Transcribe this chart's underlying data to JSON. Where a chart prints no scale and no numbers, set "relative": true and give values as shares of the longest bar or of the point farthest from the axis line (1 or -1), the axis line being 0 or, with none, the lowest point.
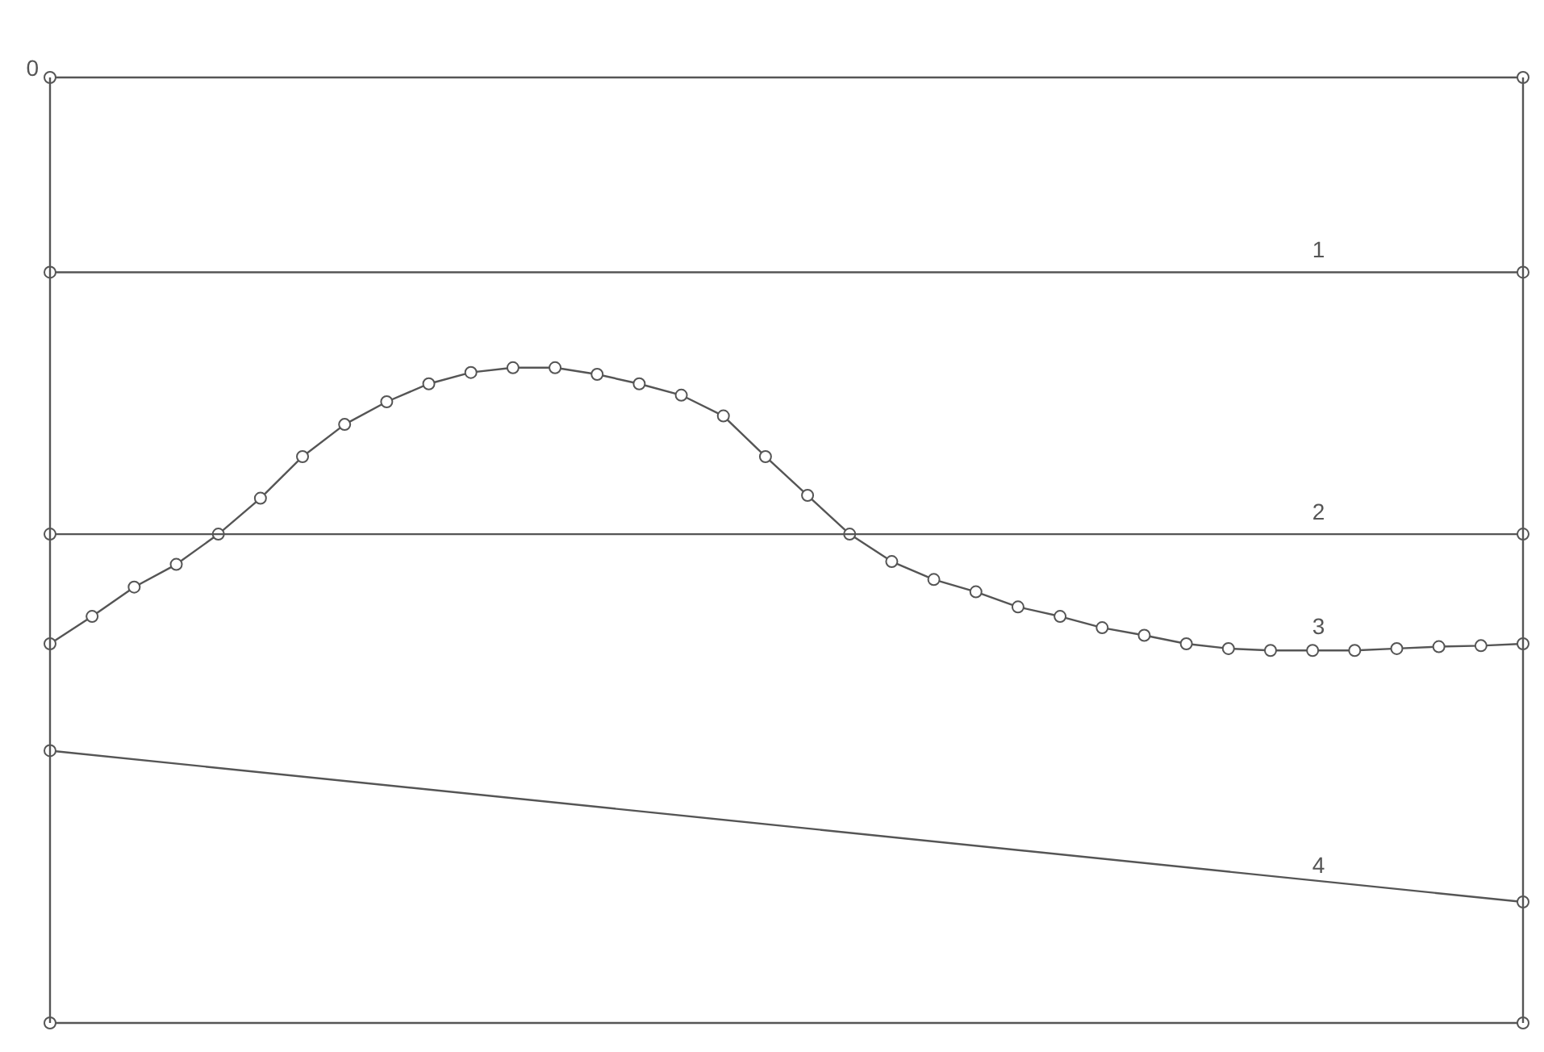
{
  "chart_data": {
    "type": "line",
    "relative": true,
    "tick_labels": false,
    "grid": false,
    "legend": false,
    "marker": "circle",
    "line_style": "solid",
    "categories": [
      null,
      null,
      null,
      null,
      null,
      null,
      null,
      null,
      null,
      null,
      null,
      null,
      null,
      null,
      null,
      null,
      null,
      null,
      null,
      null,
      null,
      null,
      null,
      null,
      null,
      null,
      null,
      null,
      null,
      null,
      null,
      null,
      null,
      null,
      null,
      null
    ],
    "series": [
      {
        "name": "0",
        "color": "#555555",
        "values": [
          1,
          null,
          null,
          null,
          null,
          null,
          null,
          null,
          null,
          null,
          null,
          null,
          null,
          null,
          null,
          null,
          null,
          null,
          null,
          null,
          null,
          null,
          null,
          null,
          null,
          null,
          null,
          null,
          null,
          null,
          null,
          null,
          null,
          null,
          null,
          1
        ]
      },
      {
        "name": "1",
        "color": "#555555",
        "values": [
          0.794,
          null,
          null,
          null,
          null,
          null,
          null,
          null,
          null,
          null,
          null,
          null,
          null,
          null,
          null,
          null,
          null,
          null,
          null,
          null,
          null,
          null,
          null,
          null,
          null,
          null,
          null,
          null,
          null,
          null,
          null,
          null,
          null,
          null,
          null,
          0.794
        ]
      },
      {
        "name": "2",
        "color": "#555555",
        "values": [
          0.517,
          null,
          null,
          null,
          null,
          null,
          null,
          null,
          null,
          null,
          null,
          null,
          null,
          null,
          null,
          null,
          null,
          null,
          null,
          null,
          null,
          null,
          null,
          null,
          null,
          null,
          null,
          null,
          null,
          null,
          null,
          null,
          null,
          null,
          null,
          0.517
        ]
      },
      {
        "name": "3",
        "color": "#555555",
        "values": [
          0.401,
          0.43,
          0.461,
          0.485,
          0.517,
          0.555,
          0.599,
          0.633,
          0.657,
          0.676,
          0.688,
          0.693,
          0.693,
          0.686,
          0.676,
          0.664,
          0.642,
          0.599,
          0.558,
          0.517,
          0.488,
          0.469,
          0.456,
          0.44,
          0.43,
          0.418,
          0.41,
          0.401,
          0.396,
          0.394,
          0.394,
          0.394,
          0.396,
          0.398,
          0.399,
          0.401
        ]
      },
      {
        "name": "4",
        "color": "#555555",
        "values": [
          0.288,
          null,
          null,
          null,
          null,
          null,
          null,
          null,
          null,
          null,
          null,
          null,
          null,
          null,
          null,
          null,
          null,
          null,
          null,
          null,
          null,
          null,
          null,
          null,
          null,
          null,
          null,
          null,
          null,
          null,
          null,
          null,
          null,
          null,
          null,
          0.128
        ]
      },
      {
        "color": "#555555",
        "values": [
          0,
          null,
          null,
          null,
          null,
          null,
          null,
          null,
          null,
          null,
          null,
          null,
          null,
          null,
          null,
          null,
          null,
          null,
          null,
          null,
          null,
          null,
          null,
          null,
          null,
          null,
          null,
          null,
          null,
          null,
          null,
          null,
          null,
          null,
          null,
          0
        ]
      }
    ]
  }
}
